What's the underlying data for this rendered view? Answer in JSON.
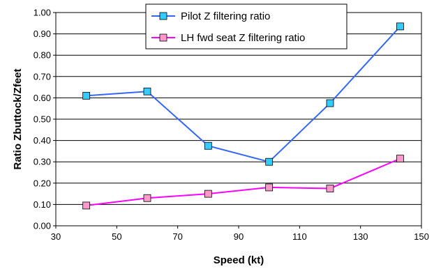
{
  "chart_data": {
    "type": "line",
    "xlabel": "Speed (kt)",
    "ylabel": "Ratio Zbuttock/Zfeet",
    "xlim": [
      30,
      150
    ],
    "ylim": [
      0,
      1.0
    ],
    "xticks": [
      30,
      50,
      70,
      90,
      110,
      130,
      150
    ],
    "yticks": [
      0,
      0.1,
      0.2,
      0.3,
      0.4,
      0.5,
      0.6,
      0.7,
      0.8,
      0.9,
      1.0
    ],
    "ytick_labels": [
      "0.00",
      "0.10",
      "0.20",
      "0.30",
      "0.40",
      "0.50",
      "0.60",
      "0.70",
      "0.80",
      "0.90",
      "1.00"
    ],
    "grid": "horizontal",
    "legend_position": "top-center",
    "series": [
      {
        "name": "Pilot Z filtering ratio",
        "line_color": "#3366ff",
        "marker_color": "#33ccff",
        "x": [
          40,
          60,
          80,
          100,
          120,
          143
        ],
        "y": [
          0.61,
          0.63,
          0.375,
          0.3,
          0.575,
          0.935
        ]
      },
      {
        "name": "LH fwd seat Z filtering ratio",
        "line_color": "#ff00ff",
        "marker_color": "#ff99cc",
        "x": [
          40,
          60,
          80,
          100,
          120,
          143
        ],
        "y": [
          0.095,
          0.13,
          0.15,
          0.18,
          0.175,
          0.315
        ]
      }
    ]
  }
}
